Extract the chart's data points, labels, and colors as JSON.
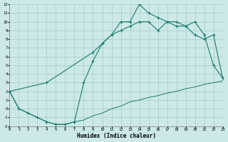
{
  "xlim": [
    0,
    23
  ],
  "ylim": [
    -2,
    12
  ],
  "xlabel": "Humidex (Indice chaleur)",
  "bg_color": "#cce9e8",
  "grid_color": "#aacfcd",
  "line_color": "#1a7a6e",
  "xticks": [
    0,
    1,
    2,
    3,
    4,
    5,
    6,
    7,
    8,
    9,
    10,
    11,
    12,
    13,
    14,
    15,
    16,
    17,
    18,
    19,
    20,
    21,
    22,
    23
  ],
  "yticks": [
    -2,
    -1,
    0,
    1,
    2,
    3,
    4,
    5,
    6,
    7,
    8,
    9,
    10,
    11,
    12
  ],
  "lineA_x": [
    0,
    1,
    2,
    3,
    4,
    5,
    6,
    7,
    8,
    9,
    10,
    11,
    12,
    13,
    14,
    15,
    16,
    17,
    18,
    19,
    20,
    21,
    22,
    23
  ],
  "lineA_y": [
    2,
    0,
    -0.5,
    -1.0,
    -1.5,
    -1.8,
    -1.8,
    -1.5,
    3.0,
    5.5,
    7.5,
    8.5,
    10.0,
    10.0,
    12.0,
    11.0,
    10.5,
    10.0,
    9.5,
    9.5,
    8.5,
    8.0,
    8.5,
    3.5
  ],
  "lineB_x": [
    0,
    4,
    9,
    10,
    11,
    12,
    13,
    14,
    15,
    16,
    17,
    18,
    19,
    20,
    21,
    22,
    23
  ],
  "lineB_y": [
    2,
    3.0,
    6.5,
    7.5,
    8.5,
    9.0,
    9.5,
    10.0,
    10.0,
    9.0,
    10.0,
    10.0,
    9.5,
    10.0,
    8.5,
    5.0,
    3.5
  ],
  "lineC_x": [
    0,
    1,
    2,
    3,
    4,
    5,
    6,
    7,
    8,
    9,
    10,
    11,
    12,
    13,
    14,
    15,
    16,
    17,
    18,
    19,
    20,
    21,
    22,
    23
  ],
  "lineC_y": [
    2,
    0,
    -0.5,
    -1.0,
    -1.5,
    -1.8,
    -1.8,
    -1.5,
    -1.3,
    -0.8,
    -0.5,
    0.0,
    0.3,
    0.8,
    1.0,
    1.3,
    1.5,
    1.8,
    2.0,
    2.3,
    2.5,
    2.8,
    3.0,
    3.2
  ]
}
